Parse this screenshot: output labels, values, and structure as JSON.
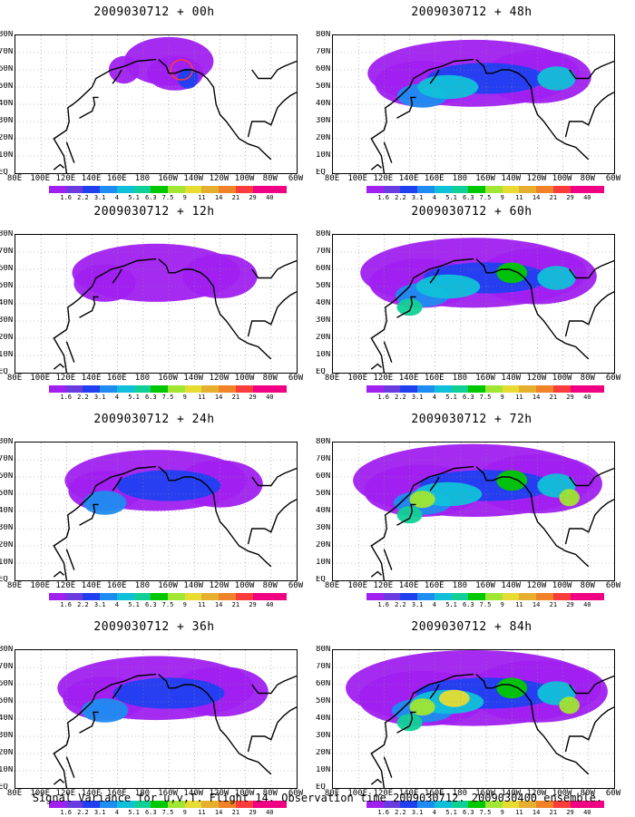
{
  "footer": "Signal Variance for u,v,T. Flight 14. Observation time 2009030712. 2009030400 ensemble.",
  "colorbar": {
    "labels": [
      "1.6",
      "2.2",
      "3.1",
      "4",
      "5.1",
      "6.3",
      "7.5",
      "9",
      "11",
      "14",
      "21",
      "29",
      "40"
    ],
    "colors": [
      "#a020f0",
      "#6a3ce0",
      "#2040f0",
      "#1e8cf0",
      "#10c0d8",
      "#10d098",
      "#00c800",
      "#a0e632",
      "#e6dc32",
      "#e6af2d",
      "#f08228",
      "#fa3c3c",
      "#f00082"
    ]
  },
  "axes": {
    "y_labels": [
      "80N",
      "70N",
      "60N",
      "50N",
      "40N",
      "30N",
      "20N",
      "10N",
      "EQ"
    ],
    "x_labels": [
      "80E",
      "100E",
      "120E",
      "140E",
      "160E",
      "180",
      "160W",
      "140W",
      "120W",
      "100W",
      "80W",
      "60W"
    ],
    "lat_range": [
      0,
      80
    ],
    "lon_range": [
      80,
      300
    ]
  },
  "panels": [
    {
      "title": "2009030712 + 00h",
      "lead": 0
    },
    {
      "title": "2009030712 + 48h",
      "lead": 48
    },
    {
      "title": "2009030712 + 12h",
      "lead": 12
    },
    {
      "title": "2009030712 + 60h",
      "lead": 60
    },
    {
      "title": "2009030712 + 24h",
      "lead": 24
    },
    {
      "title": "2009030712 + 72h",
      "lead": 72
    },
    {
      "title": "2009030712 + 36h",
      "lead": 36
    },
    {
      "title": "2009030712 + 84h",
      "lead": 84
    }
  ]
}
